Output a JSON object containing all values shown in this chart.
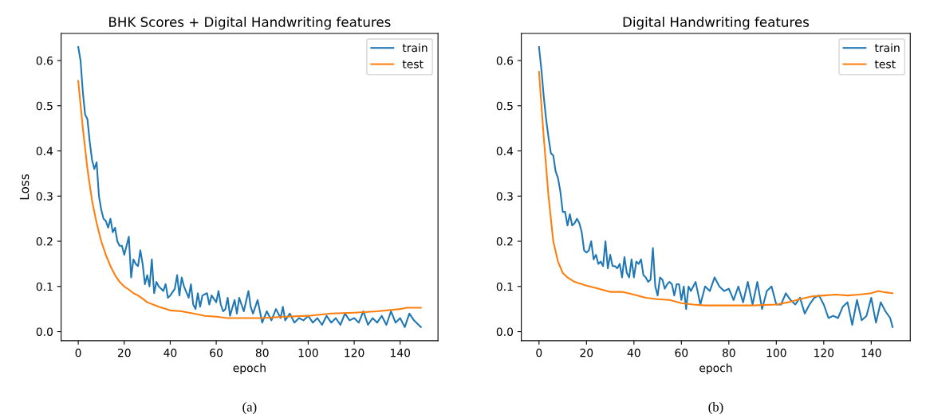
{
  "chart_data": [
    {
      "type": "line",
      "title": "BHK Scores + Digital Handwriting features",
      "xlabel": "epoch",
      "ylabel": "Loss",
      "xlim": [
        -7.45,
        156.45
      ],
      "xticks": [
        0,
        20,
        40,
        60,
        80,
        100,
        120,
        140
      ],
      "ylim": [
        -0.02,
        0.66
      ],
      "yticks": [
        {
          "value": 0,
          "label": "0.0"
        },
        0.1,
        0.2,
        0.3,
        0.4,
        0.5,
        0.6
      ],
      "legend": "top right",
      "grid": false,
      "annotations": [
        "(a)"
      ],
      "series": [
        {
          "name": "train",
          "color": "#1f77b4",
          "x": [
            0,
            1,
            2,
            3,
            4,
            5,
            6,
            7,
            8,
            9,
            10,
            11,
            12,
            13,
            14,
            15,
            16,
            17,
            18,
            19,
            20,
            21,
            22,
            23,
            24,
            25,
            26,
            27,
            28,
            29,
            30,
            31,
            32,
            33,
            34,
            35,
            36,
            37,
            38,
            39,
            40,
            42,
            43,
            44,
            45,
            46,
            48,
            49,
            50,
            51,
            52,
            53,
            54,
            56,
            57,
            58,
            60,
            61,
            62,
            63,
            64,
            65,
            66,
            68,
            69,
            70,
            72,
            74,
            75,
            76,
            78,
            80,
            82,
            84,
            86,
            88,
            89,
            90,
            92,
            94,
            96,
            98,
            100,
            102,
            104,
            106,
            108,
            110,
            112,
            114,
            116,
            118,
            120,
            122,
            124,
            126,
            128,
            130,
            132,
            134,
            136,
            138,
            140,
            142,
            144,
            146,
            148,
            149
          ],
          "values": [
            0.63,
            0.6,
            0.53,
            0.48,
            0.47,
            0.42,
            0.38,
            0.36,
            0.375,
            0.3,
            0.27,
            0.25,
            0.245,
            0.23,
            0.25,
            0.22,
            0.23,
            0.2,
            0.19,
            0.19,
            0.17,
            0.19,
            0.21,
            0.12,
            0.16,
            0.15,
            0.145,
            0.18,
            0.15,
            0.105,
            0.125,
            0.1,
            0.16,
            0.085,
            0.11,
            0.1,
            0.095,
            0.09,
            0.105,
            0.075,
            0.08,
            0.095,
            0.125,
            0.08,
            0.12,
            0.1,
            0.075,
            0.105,
            0.06,
            0.05,
            0.085,
            0.055,
            0.08,
            0.085,
            0.06,
            0.08,
            0.065,
            0.09,
            0.06,
            0.045,
            0.05,
            0.075,
            0.035,
            0.07,
            0.04,
            0.075,
            0.045,
            0.09,
            0.055,
            0.04,
            0.07,
            0.02,
            0.045,
            0.025,
            0.05,
            0.03,
            0.055,
            0.025,
            0.04,
            0.02,
            0.03,
            0.025,
            0.035,
            0.02,
            0.03,
            0.015,
            0.035,
            0.02,
            0.03,
            0.015,
            0.04,
            0.025,
            0.03,
            0.02,
            0.045,
            0.015,
            0.03,
            0.02,
            0.035,
            0.015,
            0.045,
            0.02,
            0.03,
            0.01,
            0.04,
            0.025,
            0.015,
            0.01
          ]
        },
        {
          "name": "test",
          "color": "#ff7f0e",
          "x": [
            0,
            2,
            4,
            6,
            8,
            10,
            12,
            14,
            16,
            18,
            20,
            22,
            24,
            26,
            28,
            30,
            35,
            40,
            45,
            50,
            55,
            60,
            65,
            70,
            80,
            90,
            100,
            110,
            120,
            130,
            140,
            143,
            149
          ],
          "values": [
            0.555,
            0.45,
            0.36,
            0.29,
            0.24,
            0.2,
            0.17,
            0.145,
            0.125,
            0.11,
            0.1,
            0.093,
            0.085,
            0.08,
            0.073,
            0.065,
            0.055,
            0.047,
            0.045,
            0.04,
            0.035,
            0.033,
            0.03,
            0.03,
            0.03,
            0.033,
            0.035,
            0.04,
            0.042,
            0.045,
            0.05,
            0.053,
            0.053
          ]
        }
      ]
    },
    {
      "type": "line",
      "title": "Digital Handwriting features",
      "xlabel": "epoch",
      "xlim": [
        -7.45,
        156.45
      ],
      "xticks": [
        0,
        20,
        40,
        60,
        80,
        100,
        120,
        140
      ],
      "ylim": [
        -0.02,
        0.66
      ],
      "yticks": [
        {
          "value": 0,
          "label": "0.0"
        },
        0.1,
        0.2,
        0.3,
        0.4,
        0.5,
        0.6
      ],
      "legend": "top right",
      "grid": false,
      "annotations": [
        "(b)"
      ],
      "series": [
        {
          "name": "train",
          "color": "#1f77b4",
          "x": [
            0,
            1,
            2,
            3,
            4,
            5,
            6,
            7,
            8,
            9,
            10,
            11,
            12,
            13,
            14,
            15,
            16,
            17,
            18,
            19,
            20,
            21,
            22,
            23,
            24,
            25,
            26,
            27,
            28,
            29,
            30,
            31,
            32,
            33,
            34,
            35,
            36,
            37,
            38,
            39,
            40,
            41,
            42,
            43,
            44,
            45,
            46,
            47,
            48,
            49,
            50,
            51,
            52,
            53,
            54,
            55,
            56,
            57,
            58,
            59,
            60,
            61,
            62,
            63,
            64,
            66,
            68,
            70,
            72,
            74,
            76,
            78,
            80,
            82,
            84,
            86,
            88,
            90,
            92,
            94,
            96,
            98,
            100,
            102,
            104,
            106,
            108,
            110,
            112,
            114,
            116,
            118,
            120,
            122,
            124,
            126,
            128,
            130,
            132,
            134,
            136,
            138,
            140,
            142,
            144,
            146,
            148,
            149
          ],
          "values": [
            0.63,
            0.58,
            0.52,
            0.47,
            0.43,
            0.395,
            0.39,
            0.355,
            0.34,
            0.31,
            0.265,
            0.265,
            0.235,
            0.26,
            0.235,
            0.24,
            0.25,
            0.24,
            0.22,
            0.18,
            0.175,
            0.18,
            0.2,
            0.16,
            0.17,
            0.15,
            0.155,
            0.145,
            0.2,
            0.14,
            0.17,
            0.145,
            0.145,
            0.14,
            0.15,
            0.12,
            0.165,
            0.13,
            0.12,
            0.16,
            0.12,
            0.155,
            0.15,
            0.16,
            0.125,
            0.12,
            0.11,
            0.115,
            0.185,
            0.1,
            0.08,
            0.12,
            0.115,
            0.095,
            0.105,
            0.11,
            0.105,
            0.08,
            0.105,
            0.105,
            0.07,
            0.1,
            0.05,
            0.1,
            0.09,
            0.11,
            0.06,
            0.1,
            0.09,
            0.12,
            0.1,
            0.09,
            0.095,
            0.07,
            0.1,
            0.065,
            0.11,
            0.06,
            0.11,
            0.05,
            0.09,
            0.1,
            0.06,
            0.06,
            0.085,
            0.07,
            0.06,
            0.075,
            0.04,
            0.06,
            0.075,
            0.08,
            0.06,
            0.03,
            0.035,
            0.03,
            0.055,
            0.065,
            0.015,
            0.07,
            0.025,
            0.035,
            0.075,
            0.02,
            0.065,
            0.045,
            0.03,
            0.01
          ]
        },
        {
          "name": "test",
          "color": "#ff7f0e",
          "x": [
            0,
            2,
            4,
            6,
            8,
            10,
            12,
            15,
            20,
            25,
            30,
            35,
            40,
            45,
            50,
            55,
            60,
            65,
            70,
            80,
            90,
            100,
            105,
            110,
            115,
            120,
            125,
            130,
            135,
            140,
            143,
            146,
            149
          ],
          "values": [
            0.575,
            0.43,
            0.3,
            0.2,
            0.155,
            0.13,
            0.12,
            0.11,
            0.102,
            0.095,
            0.088,
            0.088,
            0.082,
            0.075,
            0.072,
            0.07,
            0.063,
            0.06,
            0.058,
            0.058,
            0.058,
            0.06,
            0.065,
            0.072,
            0.078,
            0.08,
            0.082,
            0.08,
            0.082,
            0.085,
            0.09,
            0.087,
            0.085
          ]
        }
      ]
    }
  ]
}
